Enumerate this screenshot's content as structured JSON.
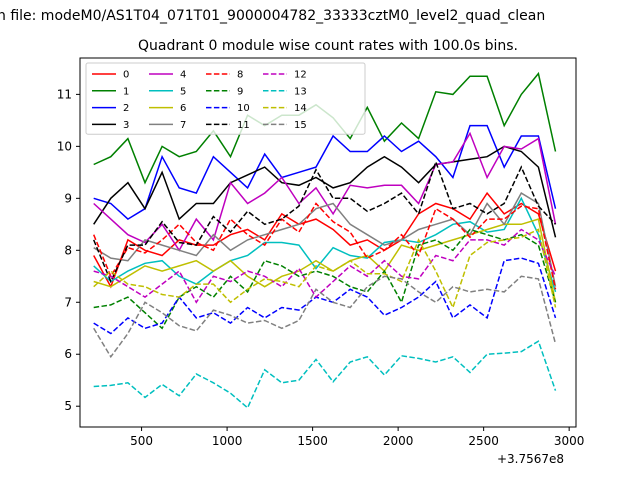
{
  "chart_data": {
    "type": "line",
    "suptitle": "n file: modeM0/AS1T04_071T01_9000004782_33333cztM0_level2_quad_clean",
    "title": "Quadrant 0 module wise count rates with 100.0s bins.",
    "xlabel": "",
    "ylabel": "",
    "x_offset_label": "+3.7567e8",
    "xlim": [
      140,
      3040
    ],
    "ylim": [
      4.6,
      11.7
    ],
    "xticks": [
      "500",
      "1000",
      "1500",
      "2000",
      "2500",
      "3000"
    ],
    "yticks": [
      "5",
      "6",
      "7",
      "8",
      "9",
      "10",
      "11"
    ],
    "x": [
      220,
      320,
      420,
      520,
      620,
      720,
      820,
      920,
      1020,
      1120,
      1220,
      1320,
      1420,
      1520,
      1620,
      1720,
      1820,
      1920,
      2020,
      2120,
      2220,
      2320,
      2420,
      2520,
      2620,
      2720,
      2820,
      2920
    ],
    "legend_position": "upper-left",
    "series": [
      {
        "name": "0",
        "color": "#ff0000",
        "dash": "solid",
        "values": [
          7.9,
          7.3,
          8.2,
          8.0,
          7.9,
          8.2,
          8.1,
          8.1,
          8.3,
          8.4,
          8.2,
          8.7,
          8.5,
          8.6,
          8.4,
          8.1,
          8.2,
          8.0,
          8.2,
          8.7,
          8.9,
          8.8,
          8.6,
          9.1,
          8.7,
          8.9,
          8.7,
          7.6
        ]
      },
      {
        "name": "1",
        "color": "#008000",
        "dash": "solid",
        "values": [
          9.65,
          9.8,
          10.15,
          9.3,
          10.0,
          9.8,
          9.9,
          10.3,
          9.8,
          10.6,
          10.4,
          10.6,
          10.6,
          10.8,
          10.55,
          10.15,
          10.75,
          10.1,
          10.45,
          10.15,
          11.05,
          11.0,
          11.35,
          11.35,
          10.4,
          11.0,
          11.4,
          9.9
        ]
      },
      {
        "name": "2",
        "color": "#0000ff",
        "dash": "solid",
        "values": [
          9.0,
          8.9,
          8.6,
          8.8,
          9.8,
          9.2,
          9.1,
          9.8,
          9.5,
          9.2,
          9.85,
          9.4,
          9.5,
          9.6,
          10.2,
          9.9,
          9.9,
          10.2,
          9.9,
          10.1,
          9.8,
          9.4,
          10.4,
          10.4,
          9.6,
          10.2,
          10.2,
          8.8
        ]
      },
      {
        "name": "3",
        "color": "#000000",
        "dash": "solid",
        "values": [
          8.5,
          9.0,
          9.3,
          8.8,
          9.5,
          8.6,
          8.9,
          8.9,
          9.3,
          9.45,
          9.6,
          9.3,
          9.25,
          9.4,
          9.2,
          9.3,
          9.6,
          9.8,
          9.6,
          9.3,
          9.65,
          9.7,
          9.75,
          9.8,
          10.0,
          9.9,
          9.6,
          8.25
        ]
      },
      {
        "name": "4",
        "color": "#bf00bf",
        "dash": "solid",
        "values": [
          8.9,
          8.6,
          8.3,
          8.15,
          8.5,
          8.0,
          8.6,
          8.2,
          9.3,
          8.9,
          9.1,
          9.4,
          8.9,
          9.2,
          8.7,
          9.25,
          9.2,
          9.25,
          9.25,
          8.9,
          9.65,
          9.7,
          10.25,
          9.4,
          10.0,
          9.95,
          10.15,
          8.5
        ]
      },
      {
        "name": "5",
        "color": "#00bfbf",
        "dash": "solid",
        "values": [
          7.7,
          7.4,
          7.6,
          7.75,
          7.8,
          7.5,
          7.35,
          7.6,
          7.8,
          7.9,
          8.15,
          8.15,
          8.1,
          7.65,
          8.05,
          7.9,
          7.85,
          8.15,
          8.2,
          8.15,
          8.3,
          8.5,
          8.55,
          8.35,
          8.4,
          9.0,
          8.3,
          7.2
        ]
      },
      {
        "name": "6",
        "color": "#bfbf00",
        "dash": "solid",
        "values": [
          7.4,
          7.3,
          7.5,
          7.7,
          7.6,
          7.7,
          7.8,
          7.6,
          7.8,
          7.5,
          7.3,
          7.5,
          7.6,
          7.8,
          7.6,
          7.8,
          7.9,
          7.6,
          8.1,
          8.0,
          8.1,
          8.2,
          8.3,
          8.4,
          8.5,
          8.5,
          8.6,
          7.0
        ]
      },
      {
        "name": "7",
        "color": "#808080",
        "dash": "solid",
        "values": [
          8.05,
          7.85,
          7.8,
          8.2,
          8.1,
          8.0,
          7.9,
          8.3,
          8.0,
          8.2,
          8.3,
          8.4,
          8.5,
          8.8,
          8.9,
          8.5,
          8.3,
          8.1,
          8.2,
          8.4,
          8.5,
          8.6,
          8.3,
          8.9,
          8.5,
          9.1,
          8.9,
          7.3
        ]
      },
      {
        "name": "8",
        "color": "#ff0000",
        "dash": "dashed",
        "values": [
          8.3,
          7.5,
          8.05,
          7.95,
          8.2,
          8.5,
          8.15,
          8.0,
          8.6,
          8.3,
          8.1,
          8.6,
          8.35,
          8.9,
          8.55,
          8.35,
          7.85,
          8.0,
          8.3,
          7.9,
          8.8,
          8.6,
          8.25,
          8.6,
          8.6,
          8.85,
          8.8,
          7.25
        ]
      },
      {
        "name": "9",
        "color": "#008000",
        "dash": "dashed",
        "values": [
          6.9,
          6.95,
          7.1,
          6.8,
          6.5,
          7.1,
          7.3,
          7.1,
          7.5,
          7.2,
          7.8,
          7.7,
          7.5,
          7.6,
          7.5,
          7.3,
          7.2,
          7.6,
          7.0,
          8.1,
          8.2,
          8.0,
          8.4,
          8.3,
          8.2,
          8.3,
          8.1,
          7.0
        ]
      },
      {
        "name": "10",
        "color": "#0000ff",
        "dash": "dashed",
        "values": [
          6.6,
          6.4,
          6.7,
          6.5,
          6.6,
          7.1,
          6.7,
          6.8,
          6.6,
          6.9,
          6.7,
          6.9,
          6.85,
          7.1,
          7.0,
          7.25,
          7.1,
          6.75,
          6.9,
          7.1,
          7.4,
          6.7,
          6.95,
          6.7,
          7.8,
          7.85,
          7.75,
          6.7
        ]
      },
      {
        "name": "11",
        "color": "#000000",
        "dash": "dashed",
        "values": [
          8.2,
          7.4,
          8.1,
          8.1,
          8.55,
          8.15,
          8.1,
          8.65,
          8.35,
          8.75,
          8.5,
          8.6,
          8.85,
          9.55,
          9.0,
          9.0,
          8.75,
          8.9,
          9.1,
          8.7,
          9.7,
          8.8,
          8.9,
          8.7,
          8.9,
          9.6,
          8.85,
          8.5
        ]
      },
      {
        "name": "12",
        "color": "#bf00bf",
        "dash": "dashed",
        "values": [
          7.6,
          7.5,
          7.3,
          7.1,
          7.35,
          7.6,
          7.0,
          7.5,
          7.4,
          7.6,
          7.5,
          7.3,
          7.65,
          7.1,
          7.4,
          7.7,
          7.5,
          7.8,
          7.5,
          7.45,
          7.9,
          7.8,
          8.2,
          8.2,
          8.1,
          8.4,
          8.2,
          7.5
        ]
      },
      {
        "name": "13",
        "color": "#00bfbf",
        "dash": "dashed",
        "values": [
          5.38,
          5.4,
          5.45,
          5.17,
          5.42,
          5.2,
          5.62,
          5.45,
          5.25,
          4.97,
          5.7,
          5.45,
          5.5,
          5.9,
          5.47,
          5.85,
          5.95,
          5.6,
          5.97,
          5.92,
          5.85,
          5.95,
          5.65,
          6.0,
          6.02,
          6.05,
          6.25,
          5.3
        ]
      },
      {
        "name": "14",
        "color": "#bfbf00",
        "dash": "dashed",
        "values": [
          7.3,
          7.6,
          7.35,
          7.3,
          7.15,
          7.1,
          7.35,
          7.35,
          7.0,
          7.25,
          7.45,
          7.4,
          7.3,
          7.7,
          7.6,
          7.8,
          7.55,
          7.55,
          7.4,
          8.2,
          7.6,
          6.9,
          7.9,
          8.15,
          8.2,
          8.25,
          8.4,
          6.9
        ]
      },
      {
        "name": "15",
        "color": "#808080",
        "dash": "dashed",
        "values": [
          6.5,
          5.95,
          6.4,
          7.0,
          6.8,
          6.55,
          6.45,
          6.85,
          6.75,
          6.6,
          6.65,
          6.5,
          6.65,
          7.25,
          7.0,
          6.9,
          7.3,
          7.5,
          7.45,
          7.2,
          7.0,
          7.3,
          7.2,
          7.25,
          7.2,
          7.5,
          7.45,
          6.2
        ]
      }
    ]
  }
}
